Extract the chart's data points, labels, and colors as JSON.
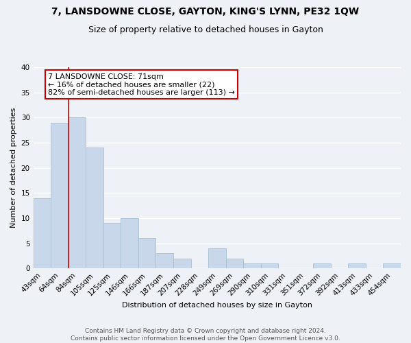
{
  "title": "7, LANSDOWNE CLOSE, GAYTON, KING'S LYNN, PE32 1QW",
  "subtitle": "Size of property relative to detached houses in Gayton",
  "xlabel": "Distribution of detached houses by size in Gayton",
  "ylabel": "Number of detached properties",
  "bar_color": "#c8d8ea",
  "bar_edge_color": "#a8c0d4",
  "categories": [
    "43sqm",
    "64sqm",
    "84sqm",
    "105sqm",
    "125sqm",
    "146sqm",
    "166sqm",
    "187sqm",
    "207sqm",
    "228sqm",
    "249sqm",
    "269sqm",
    "290sqm",
    "310sqm",
    "331sqm",
    "351sqm",
    "372sqm",
    "392sqm",
    "413sqm",
    "433sqm",
    "454sqm"
  ],
  "values": [
    14,
    29,
    30,
    24,
    9,
    10,
    6,
    3,
    2,
    0,
    4,
    2,
    1,
    1,
    0,
    0,
    1,
    0,
    1,
    0,
    1
  ],
  "ylim": [
    0,
    40
  ],
  "yticks": [
    0,
    5,
    10,
    15,
    20,
    25,
    30,
    35,
    40
  ],
  "vline_x": 1.5,
  "vline_color": "#cc0000",
  "annotation_title": "7 LANSDOWNE CLOSE: 71sqm",
  "annotation_line1": "← 16% of detached houses are smaller (22)",
  "annotation_line2": "82% of semi-detached houses are larger (113) →",
  "annotation_box_facecolor": "#ffffff",
  "annotation_box_edgecolor": "#cc0000",
  "footer_line1": "Contains HM Land Registry data © Crown copyright and database right 2024.",
  "footer_line2": "Contains public sector information licensed under the Open Government Licence v3.0.",
  "background_color": "#eef2f7",
  "grid_color": "#ffffff",
  "title_fontsize": 10,
  "subtitle_fontsize": 9,
  "axis_fontsize": 8,
  "tick_fontsize": 7.5,
  "annotation_fontsize": 8,
  "footer_fontsize": 6.5
}
